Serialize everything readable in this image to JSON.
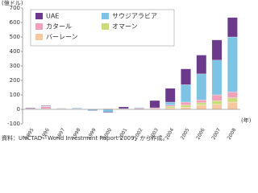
{
  "chart_data": {
    "type": "stacked_bar",
    "y_label": "(億ドル)",
    "x_label": "(年)",
    "source": "資料：UNCTAD「World Investment Report 2009」から作成。",
    "categories": [
      "1995",
      "1996",
      "1997",
      "1998",
      "1999",
      "2000",
      "2001",
      "2002",
      "2003",
      "2004",
      "2005",
      "2006",
      "2007",
      "2008"
    ],
    "series": [
      {
        "name": "UAE",
        "color": "#6b3a8a",
        "values": [
          5,
          4,
          2,
          1,
          -3,
          -5,
          12,
          1,
          50,
          95,
          110,
          130,
          140,
          135
        ]
      },
      {
        "name": "サウジアラビア",
        "color": "#7ec3e4",
        "values": [
          0,
          3,
          3,
          5,
          -8,
          -18,
          0,
          5,
          0,
          20,
          120,
          180,
          240,
          380
        ]
      },
      {
        "name": "カタール",
        "color": "#f0a0b8",
        "values": [
          3,
          15,
          3,
          3,
          1,
          3,
          3,
          6,
          6,
          10,
          20,
          20,
          40,
          40
        ]
      },
      {
        "name": "オマーン",
        "color": "#c8dc78",
        "values": [
          1,
          1,
          1,
          1,
          0,
          1,
          1,
          0,
          0,
          10,
          15,
          15,
          25,
          30
        ]
      },
      {
        "name": "バーレーン",
        "color": "#f6c9a0",
        "values": [
          2,
          3,
          2,
          1,
          2,
          4,
          1,
          2,
          5,
          10,
          15,
          30,
          35,
          50
        ]
      }
    ],
    "ylim": [
      -100,
      700
    ],
    "yticks": [
      -100,
      0,
      100,
      200,
      300,
      400,
      500,
      600,
      700
    ],
    "legend": "upper-left"
  }
}
